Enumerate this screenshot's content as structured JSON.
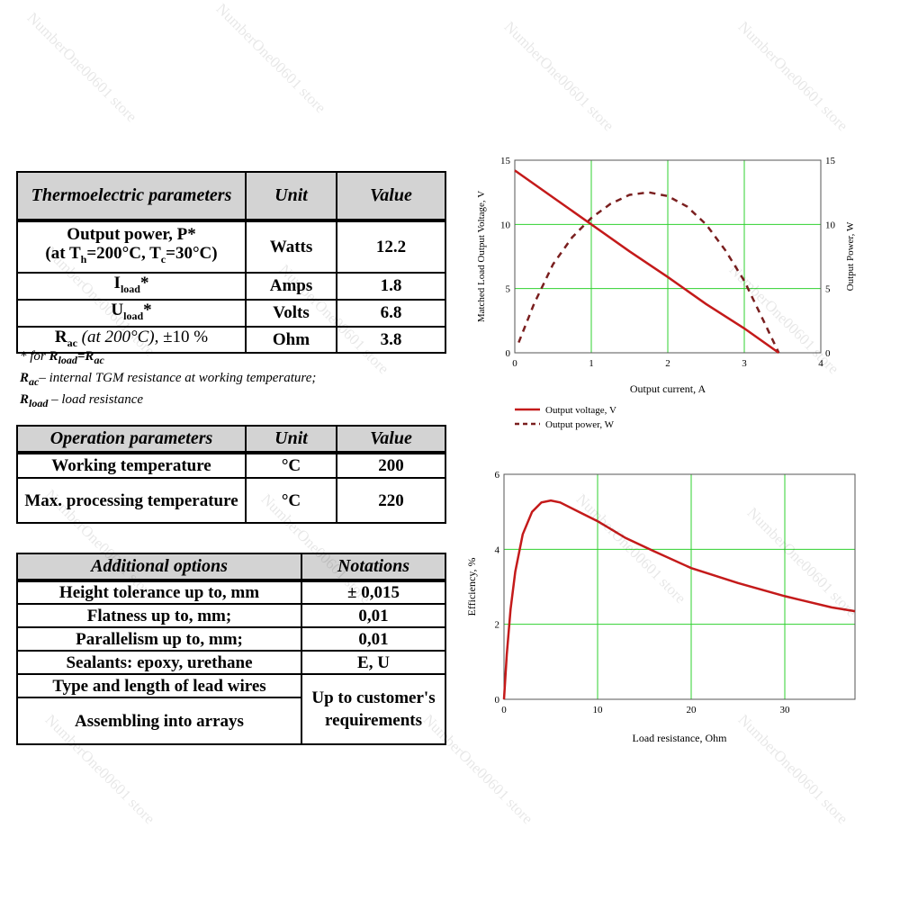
{
  "thermo_table": {
    "headers": [
      "Thermoelectric parameters",
      "Unit",
      "Value"
    ],
    "output_power_line1": "Output power, P*",
    "output_power_line2_pre": "(at T",
    "output_power_sub_h": "h",
    "output_power_mid": "=200°C, T",
    "output_power_sub_c": "c",
    "output_power_post": "=30°C)",
    "output_power_unit": "Watts",
    "output_power_value": "12.2",
    "iload_main": "I",
    "iload_sub": "load",
    "iload_star": "*",
    "iload_unit": "Amps",
    "iload_value": "1.8",
    "uload_main": "U",
    "uload_sub": "load",
    "uload_star": "*",
    "uload_unit": "Volts",
    "uload_value": "6.8",
    "rac_main": "R",
    "rac_sub": "ac",
    "rac_cond": " (at 200°C)",
    "rac_tol": ", ±10 %",
    "rac_unit": "Ohm",
    "rac_value": "3.8"
  },
  "notes": {
    "note1_pre": "* for ",
    "note1_r1": "R",
    "note1_s1": "load",
    "note1_eq": "=R",
    "note1_s2": "ac",
    "note2_r": "R",
    "note2_s": "ac",
    "note2_text": "– internal TGM resistance at working temperature;",
    "note3_r": "R",
    "note3_s": "load",
    "note3_text": " – load resistance"
  },
  "operation_table": {
    "headers": [
      "Operation parameters",
      "Unit",
      "Value"
    ],
    "rows": [
      [
        "Working temperature",
        "°C",
        "200"
      ],
      [
        "Max. processing temperature",
        "°C",
        "220"
      ]
    ]
  },
  "options_table": {
    "headers": [
      "Additional options",
      "Notations"
    ],
    "rows": [
      "Height tolerance up to, mm",
      "Flatness up to, mm;",
      "Parallelism up to, mm;",
      "Sealants: epoxy, urethane",
      "Type and length of lead wires",
      "Assembling into arrays"
    ],
    "notations": [
      "± 0,015",
      "0,01",
      "0,01",
      "E, U"
    ],
    "merged_notation": "Up to customer's requirements"
  },
  "chart_data": [
    {
      "type": "line",
      "xlabel": "Output current, A",
      "ylabel": "Matched Load Output Voltage, V",
      "y2label": "Output Power, W",
      "xlim": [
        0,
        4
      ],
      "ylim": [
        0,
        15
      ],
      "y2lim": [
        0,
        15
      ],
      "x_ticks": [
        "0",
        "1",
        "2",
        "3",
        "4"
      ],
      "y_ticks": [
        "0",
        "5",
        "10",
        "15"
      ],
      "y2_ticks": [
        "0",
        "5",
        "10",
        "15"
      ],
      "grid": true,
      "legend_position": "bottom-left",
      "series": [
        {
          "name": "Output voltage, V",
          "color": "#c41a1a",
          "style": "solid",
          "x": [
            0,
            0.5,
            1,
            1.5,
            2,
            2.5,
            3,
            3.45
          ],
          "y": [
            14.2,
            12.1,
            10.0,
            7.9,
            5.9,
            3.8,
            1.9,
            0
          ]
        },
        {
          "name": "Output power, W",
          "color": "#7a1f1f",
          "style": "dashed",
          "x": [
            0.05,
            0.25,
            0.5,
            0.75,
            1,
            1.25,
            1.5,
            1.75,
            2,
            2.25,
            2.5,
            2.75,
            3,
            3.25,
            3.45
          ],
          "y": [
            0.8,
            3.8,
            6.9,
            9.0,
            10.5,
            11.6,
            12.3,
            12.5,
            12.2,
            11.4,
            10.0,
            8.0,
            5.6,
            2.5,
            0
          ]
        }
      ]
    },
    {
      "type": "line",
      "xlabel": "Load resistance, Ohm",
      "ylabel": "Efficiency, %",
      "xlim": [
        0,
        37.5
      ],
      "ylim": [
        0,
        6
      ],
      "x_ticks": [
        "0",
        "10",
        "20",
        "30"
      ],
      "y_ticks": [
        "0",
        "2",
        "4",
        "6"
      ],
      "grid": true,
      "series": [
        {
          "name": "",
          "color": "#c41a1a",
          "style": "solid",
          "x": [
            0,
            0.3,
            0.7,
            1.2,
            2,
            3,
            4,
            5,
            6,
            8,
            10,
            13,
            16,
            20,
            25,
            30,
            35,
            37.5
          ],
          "y": [
            0,
            1.2,
            2.4,
            3.4,
            4.4,
            5.0,
            5.25,
            5.3,
            5.25,
            5.0,
            4.75,
            4.3,
            3.95,
            3.5,
            3.1,
            2.75,
            2.45,
            2.35
          ]
        }
      ]
    }
  ],
  "watermark": "NumberOne00601 store"
}
